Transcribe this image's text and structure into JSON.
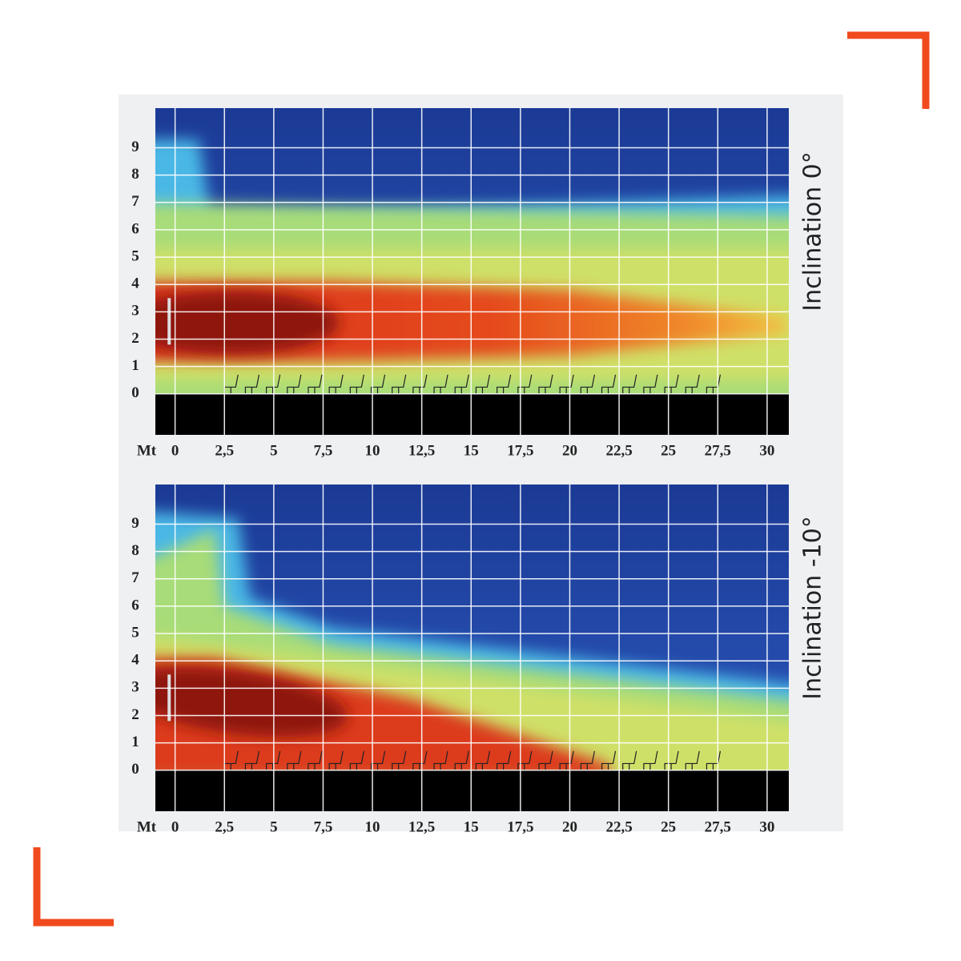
{
  "chart_data": [
    {
      "type": "heatmap",
      "title": "Inclination 0°",
      "x_label": "Mt",
      "xlim": [
        -1,
        31.1
      ],
      "ylim": [
        -1.5,
        10.45
      ],
      "xticks": [
        0,
        {
          "value": 2.5,
          "label": "2,5"
        },
        5,
        {
          "value": 7.5,
          "label": "7,5"
        },
        10,
        {
          "value": 12.5,
          "label": "12,5"
        },
        15,
        {
          "value": 17.5,
          "label": "17,5"
        },
        20,
        {
          "value": 22.5,
          "label": "22,5"
        },
        25,
        {
          "value": 27.5,
          "label": "27,5"
        },
        30
      ],
      "yticks": [
        0,
        1,
        2,
        3,
        4,
        5,
        6,
        7,
        8,
        9
      ],
      "grid": true
    },
    {
      "type": "heatmap",
      "title": "Inclination -10°",
      "x_label": "Mt",
      "xlim": [
        -1,
        31.1
      ],
      "ylim": [
        -1.5,
        10.45
      ],
      "xticks": [
        0,
        {
          "value": 2.5,
          "label": "2,5"
        },
        5,
        {
          "value": 7.5,
          "label": "7,5"
        },
        10,
        {
          "value": 12.5,
          "label": "12,5"
        },
        15,
        {
          "value": 17.5,
          "label": "17,5"
        },
        20,
        {
          "value": 22.5,
          "label": "22,5"
        },
        25,
        {
          "value": 27.5,
          "label": "27,5"
        },
        30
      ],
      "yticks": [
        0,
        1,
        2,
        3,
        4,
        5,
        6,
        7,
        8,
        9
      ],
      "grid": true
    }
  ]
}
